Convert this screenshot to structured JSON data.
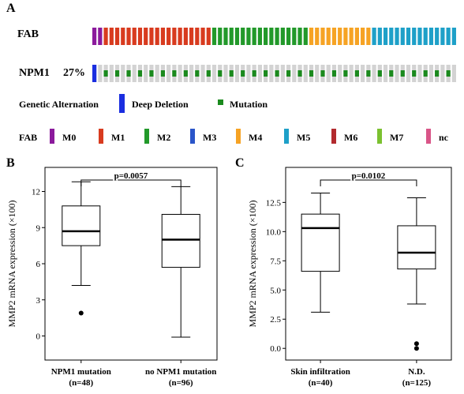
{
  "panels": {
    "a": "A",
    "b": "B",
    "c": "C"
  },
  "oncoprint": {
    "fab_label": "FAB",
    "npm1_label": "NPM1",
    "npm1_pct": "27%",
    "fab_sequence": [
      "M0",
      "M0",
      "M1",
      "M1",
      "M1",
      "M1",
      "M1",
      "M1",
      "M1",
      "M1",
      "M1",
      "M1",
      "M1",
      "M1",
      "M1",
      "M1",
      "M1",
      "M1",
      "M1",
      "M1",
      "M1",
      "M2",
      "M2",
      "M2",
      "M2",
      "M2",
      "M2",
      "M2",
      "M2",
      "M2",
      "M2",
      "M2",
      "M2",
      "M2",
      "M2",
      "M2",
      "M2",
      "M2",
      "M4",
      "M4",
      "M4",
      "M4",
      "M4",
      "M4",
      "M4",
      "M4",
      "M4",
      "M4",
      "M4",
      "M5",
      "M5",
      "M5",
      "M5",
      "M5",
      "M5",
      "M5",
      "M5",
      "M5",
      "M5",
      "M5",
      "M5",
      "M5",
      "M5",
      "M5"
    ],
    "npm1_deep_deletion_index": 0,
    "npm1_mutation_pattern": "alternating",
    "colors": {
      "M0": "#8b1a9c",
      "M1": "#d83b1f",
      "M2": "#22992a",
      "M3": "#2a55c9",
      "M4": "#f6a324",
      "M5": "#1ea0c8",
      "M6": "#b22a2e",
      "M7": "#7bc130",
      "nc": "#d95588",
      "mutation": "#1b8a1e",
      "deep_deletion": "#1a2ee0",
      "empty": "#d3d3d3"
    }
  },
  "genetic_legend": {
    "title": "Genetic Alternation",
    "deep_deletion": "Deep Deletion",
    "mutation": "Mutation"
  },
  "fab_legend": {
    "title": "FAB",
    "items": [
      "M0",
      "M1",
      "M2",
      "M3",
      "M4",
      "M5",
      "M6",
      "M7",
      "nc"
    ]
  },
  "chart_data": [
    {
      "type": "box",
      "panel": "B",
      "ylabel": "MMP2 mRNA expression (×100)",
      "ylim": [
        -2,
        14
      ],
      "yticks": [
        0,
        3,
        6,
        9,
        12
      ],
      "pvalue": "p=0.0057",
      "groups": [
        {
          "name": "NPM1 mutation",
          "n": "(n=48)",
          "whisker_low": 4.2,
          "q1": 7.5,
          "median": 8.7,
          "q3": 10.8,
          "whisker_high": 12.8,
          "outliers": [
            1.9
          ]
        },
        {
          "name": "no NPM1 mutation",
          "n": "(n=96)",
          "whisker_low": -0.1,
          "q1": 5.7,
          "median": 8.0,
          "q3": 10.1,
          "whisker_high": 12.4,
          "outliers": []
        }
      ]
    },
    {
      "type": "box",
      "panel": "C",
      "ylabel": "MMP2 mRNA expression (×100)",
      "ylim": [
        -1,
        15.5
      ],
      "yticks": [
        0.0,
        2.5,
        5.0,
        7.5,
        10.0,
        12.5
      ],
      "pvalue": "p=0.0102",
      "groups": [
        {
          "name": "Skin infiltration",
          "n": "(n=40)",
          "whisker_low": 3.1,
          "q1": 6.6,
          "median": 10.3,
          "q3": 11.5,
          "whisker_high": 13.3,
          "outliers": []
        },
        {
          "name": "N.D.",
          "n": "(n=125)",
          "whisker_low": 3.8,
          "q1": 6.8,
          "median": 8.2,
          "q3": 10.5,
          "whisker_high": 12.9,
          "outliers": [
            0.4,
            0.0
          ]
        }
      ]
    }
  ]
}
